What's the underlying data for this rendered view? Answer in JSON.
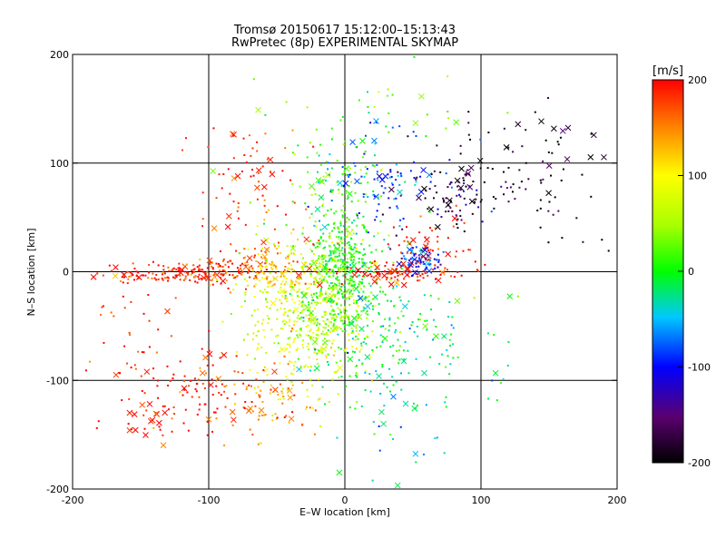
{
  "chart_data": {
    "type": "scatter",
    "title_line1": "Tromsø 20150617 15:12:00–15:13:43",
    "title_line2": "RwPretec (8p) EXPERIMENTAL SKYMAP",
    "xlabel": "E–W location [km]",
    "ylabel": "N–S location [km]",
    "xlim": [
      -200,
      200
    ],
    "ylim": [
      -200,
      200
    ],
    "xticks": [
      -200,
      -100,
      0,
      100,
      200
    ],
    "yticks": [
      -200,
      -100,
      0,
      100,
      200
    ],
    "grid": true,
    "colorbar": {
      "label": "[m/s]",
      "min": -200,
      "max": 200,
      "ticks": [
        200,
        100,
        0,
        -100,
        -200
      ],
      "colormap": "rainbow-black-to-red"
    },
    "marker_styles": [
      "dot",
      "x"
    ],
    "clusters": [
      {
        "cx": -120,
        "cy": -2,
        "sx": 30,
        "sy": 5,
        "v": 190,
        "n": 140,
        "x_frac": 0.12
      },
      {
        "cx": -80,
        "cy": 2,
        "sx": 20,
        "sy": 8,
        "v": 170,
        "n": 80,
        "x_frac": 0.1
      },
      {
        "cx": -50,
        "cy": 0,
        "sx": 15,
        "sy": 10,
        "v": 120,
        "n": 80,
        "x_frac": 0.05
      },
      {
        "cx": -30,
        "cy": -40,
        "sx": 22,
        "sy": 35,
        "v": 80,
        "n": 400,
        "x_frac": 0.04
      },
      {
        "cx": -10,
        "cy": -30,
        "sx": 14,
        "sy": 35,
        "v": 40,
        "n": 260,
        "x_frac": 0.04
      },
      {
        "cx": 0,
        "cy": 5,
        "sx": 12,
        "sy": 25,
        "v": 5,
        "n": 300,
        "x_frac": 0.04
      },
      {
        "cx": 25,
        "cy": -50,
        "sx": 25,
        "sy": 30,
        "v": -15,
        "n": 150,
        "x_frac": 0.08
      },
      {
        "cx": 40,
        "cy": -2,
        "sx": 30,
        "sy": 5,
        "v": 195,
        "n": 90,
        "x_frac": 0.25
      },
      {
        "cx": 60,
        "cy": 20,
        "sx": 15,
        "sy": 15,
        "v": 190,
        "n": 60,
        "x_frac": 0.3
      },
      {
        "cx": 55,
        "cy": 10,
        "sx": 8,
        "sy": 6,
        "v": -100,
        "n": 70,
        "x_frac": 0.05
      },
      {
        "cx": 30,
        "cy": 85,
        "sx": 25,
        "sy": 25,
        "v": -80,
        "n": 110,
        "x_frac": 0.15
      },
      {
        "cx": 85,
        "cy": 75,
        "sx": 25,
        "sy": 20,
        "v": -180,
        "n": 110,
        "x_frac": 0.12
      },
      {
        "cx": 160,
        "cy": 70,
        "sx": 20,
        "sy": 30,
        "v": -195,
        "n": 30,
        "x_frac": 0.2
      },
      {
        "cx": -10,
        "cy": 80,
        "sx": 25,
        "sy": 25,
        "v": 20,
        "n": 90,
        "x_frac": 0.1
      },
      {
        "cx": -70,
        "cy": 100,
        "sx": 20,
        "sy": 20,
        "v": 185,
        "n": 45,
        "x_frac": 0.2
      },
      {
        "cx": -60,
        "cy": 40,
        "sx": 25,
        "sy": 20,
        "v": 180,
        "n": 40,
        "x_frac": 0.25
      },
      {
        "cx": -110,
        "cy": -110,
        "sx": 25,
        "sy": 20,
        "v": 195,
        "n": 90,
        "x_frac": 0.12
      },
      {
        "cx": -140,
        "cy": -140,
        "sx": 10,
        "sy": 10,
        "v": 198,
        "n": 25,
        "x_frac": 0.5
      },
      {
        "cx": -60,
        "cy": -120,
        "sx": 20,
        "sy": 20,
        "v": 150,
        "n": 80,
        "x_frac": 0.15
      },
      {
        "cx": -150,
        "cy": -60,
        "sx": 25,
        "sy": 30,
        "v": 190,
        "n": 35,
        "x_frac": 0.1
      },
      {
        "cx": 40,
        "cy": -120,
        "sx": 30,
        "sy": 35,
        "v": -30,
        "n": 50,
        "x_frac": 0.2
      },
      {
        "cx": 10,
        "cy": 150,
        "sx": 40,
        "sy": 20,
        "v": 30,
        "n": 30,
        "x_frac": 0.15
      },
      {
        "cx": 80,
        "cy": -60,
        "sx": 25,
        "sy": 30,
        "v": 0,
        "n": 30,
        "x_frac": 0.1
      },
      {
        "cx": 130,
        "cy": 110,
        "sx": 30,
        "sy": 20,
        "v": -190,
        "n": 25,
        "x_frac": 0.3
      }
    ]
  }
}
